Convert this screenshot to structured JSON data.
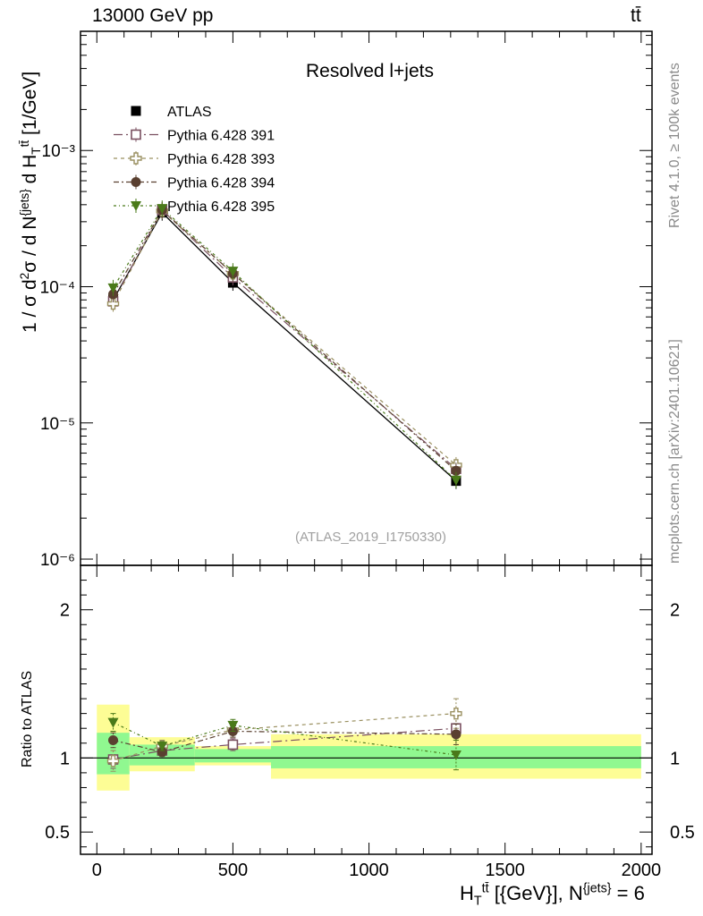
{
  "header": {
    "energy_label": "13000 GeV pp",
    "process_label": "tt̄"
  },
  "axes": {
    "ylabel_main": "1 / σ d²σ / d N^{jets} d H_T^{tt̄} [1/GeV]",
    "ylabel_ratio": "Ratio to ATLAS",
    "xlabel": "H_T^{tt̄} [{GeV}], N^{jets} = 6"
  },
  "side_notes": {
    "rivet": "Rivet 4.1.0, ≥ 100k events",
    "mcplots": "mcplots.cern.ch [arXiv:2401.10621]"
  },
  "colors": {
    "atlas": "#000000",
    "p391": "#7a5060",
    "p393": "#9a9060",
    "p394": "#5a4030",
    "p395": "#4a7a1a",
    "band_green": "#90f890",
    "band_yellow": "#fdfd95"
  },
  "chart_data": [
    {
      "type": "scatter",
      "title": "Resolved l+jets",
      "annotation": "(ATLAS_2019_I1750330)",
      "yscale": "log",
      "ylim": [
        9e-07,
        0.0075
      ],
      "xlim": [
        -60,
        2040
      ],
      "ytick_labels": [
        {
          "value": 1e-06,
          "label": "10⁻⁶"
        },
        {
          "value": 1e-05,
          "label": "10⁻⁵"
        },
        {
          "value": 0.0001,
          "label": "10⁻⁴"
        },
        {
          "value": 0.001,
          "label": "10⁻³"
        }
      ],
      "x": [
        60,
        240,
        500,
        1320
      ],
      "series": [
        {
          "name": "ATLAS",
          "values": [
            8e-05,
            0.00035,
            0.000107,
            3.75e-06
          ]
        },
        {
          "name": "Pythia 6.428 391",
          "values": [
            7.8e-05,
            0.000365,
            0.000117,
            4.6e-06
          ]
        },
        {
          "name": "Pythia 6.428 393",
          "values": [
            7.5e-05,
            0.00036,
            0.000125,
            4.9e-06
          ]
        },
        {
          "name": "Pythia 6.428 394",
          "values": [
            8.8e-05,
            0.000365,
            0.000125,
            4.45e-06
          ]
        },
        {
          "name": "Pythia 6.428 395",
          "values": [
            9.8e-05,
            0.000375,
            0.00013,
            3.8e-06
          ]
        }
      ]
    },
    {
      "type": "scatter",
      "ylabel": "Ratio to ATLAS",
      "xlabel": "H_T^{tt̄} [{GeV}], N^{jets} = 6",
      "ylim": [
        0.35,
        2.3
      ],
      "xlim": [
        -60,
        2040
      ],
      "ytick_labels": [
        {
          "value": 0.5,
          "label": "0.5"
        },
        {
          "value": 1,
          "label": "1"
        },
        {
          "value": 2,
          "label": "2"
        }
      ],
      "xtick_labels": [
        {
          "value": 0,
          "label": "0"
        },
        {
          "value": 500,
          "label": "500"
        },
        {
          "value": 1000,
          "label": "1000"
        },
        {
          "value": 1500,
          "label": "1500"
        },
        {
          "value": 2000,
          "label": "2000"
        }
      ],
      "bins": [
        {
          "lo": 0,
          "hi": 120,
          "green": [
            0.89,
            1.17
          ],
          "yellow": [
            0.78,
            1.36
          ]
        },
        {
          "lo": 120,
          "hi": 360,
          "green": [
            0.95,
            1.09
          ],
          "yellow": [
            0.91,
            1.14
          ]
        },
        {
          "lo": 360,
          "hi": 640,
          "green": [
            0.97,
            1.06
          ],
          "yellow": [
            0.95,
            1.08
          ]
        },
        {
          "lo": 640,
          "hi": 2000,
          "green": [
            0.93,
            1.08
          ],
          "yellow": [
            0.86,
            1.16
          ]
        }
      ],
      "x": [
        60,
        240,
        500,
        1320
      ],
      "series": [
        {
          "name": "Pythia 6.428 391",
          "values": [
            0.99,
            1.05,
            1.09,
            1.2
          ],
          "errors": [
            0.06,
            0.03,
            0.04,
            0.08
          ]
        },
        {
          "name": "Pythia 6.428 393",
          "values": [
            0.98,
            1.08,
            1.19,
            1.3
          ],
          "errors": [
            0.07,
            0.04,
            0.05,
            0.1
          ]
        },
        {
          "name": "Pythia 6.428 394",
          "values": [
            1.12,
            1.04,
            1.18,
            1.16
          ],
          "errors": [
            0.05,
            0.03,
            0.04,
            0.07
          ]
        },
        {
          "name": "Pythia 6.428 395",
          "values": [
            1.24,
            1.08,
            1.22,
            1.02
          ],
          "errors": [
            0.06,
            0.03,
            0.04,
            0.1
          ]
        }
      ]
    }
  ]
}
